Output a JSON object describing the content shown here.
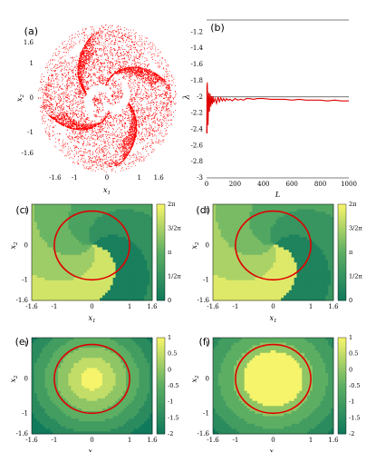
{
  "chart_data": [
    {
      "panel": "(a)",
      "type": "scatter",
      "xlabel": "x1",
      "ylabel": "x2",
      "xticks": [
        "-1.6",
        "-1",
        "0",
        "1",
        "1.6"
      ],
      "yticks": [
        "1.6",
        "1",
        "0",
        "-1",
        "-1.6"
      ],
      "xlim": [
        -2.1,
        2.1
      ],
      "ylim": [
        -2.1,
        2.1
      ],
      "marker_color": "#ff0000",
      "pattern": "spiral attractor cloud, dense square-like region with white spiral arms at center"
    },
    {
      "panel": "(b)",
      "type": "line",
      "xlabel": "L",
      "ylabel": "λ",
      "xticks": [
        "0",
        "200",
        "400",
        "600",
        "800",
        "1000"
      ],
      "yticks": [
        "-1.2",
        "-1.4",
        "-1.6",
        "-1.8",
        "-2",
        "-2.2",
        "-2.4",
        "-2.6",
        "-2.8",
        "-3"
      ],
      "xlim": [
        0,
        1000
      ],
      "ylim": [
        -3.0,
        -1.05
      ],
      "reference_line_y": -2.0,
      "series": [
        {
          "color": "#e00000",
          "x": [
            1,
            5,
            10,
            15,
            20,
            25,
            30,
            35,
            40,
            45,
            50,
            60,
            70,
            80,
            90,
            100,
            110,
            120,
            130,
            140,
            150,
            165,
            180,
            200,
            220,
            240,
            260,
            280,
            300,
            330,
            360,
            400,
            450,
            500,
            550,
            600,
            650,
            700,
            750,
            800,
            850,
            900,
            950,
            1000
          ],
          "y": [
            -2.45,
            -1.82,
            -2.35,
            -1.95,
            -2.18,
            -1.96,
            -2.12,
            -1.99,
            -2.09,
            -1.99,
            -2.07,
            -2.02,
            -2.08,
            -2.0,
            -2.06,
            -2.01,
            -2.05,
            -2.02,
            -2.05,
            -2.02,
            -2.04,
            -2.03,
            -2.05,
            -2.02,
            -2.04,
            -2.03,
            -2.04,
            -2.02,
            -2.02,
            -2.03,
            -2.02,
            -2.02,
            -2.03,
            -2.03,
            -2.03,
            -2.04,
            -2.03,
            -2.04,
            -2.04,
            -2.04,
            -2.05,
            -2.04,
            -2.05,
            -2.05
          ]
        }
      ]
    },
    {
      "panel": "(c)",
      "type": "heatmap",
      "xlabel": "x1",
      "ylabel": "x2",
      "xticks": [
        "-1.6",
        "-1",
        "0",
        "1",
        "1.6"
      ],
      "yticks": [
        "1",
        "0",
        "-1",
        "-1.6"
      ],
      "colorbar_ticks": [
        "2π",
        "3/2π",
        "π",
        "1/2π",
        "0"
      ],
      "circle_color": "#e00000",
      "circle_radius": 1.0,
      "field": "angle",
      "range": [
        0,
        6.283
      ]
    },
    {
      "panel": "(d)",
      "type": "heatmap",
      "xlabel": "x1",
      "ylabel": "x2",
      "xticks": [
        "-1.6",
        "-1",
        "0",
        "1",
        "1.6"
      ],
      "yticks": [
        "1",
        "0",
        "-1",
        "-1.6"
      ],
      "colorbar_ticks": [
        "2π",
        "3/2π",
        "π",
        "1/2π",
        "0"
      ],
      "circle_color": "#e00000",
      "circle_radius": 1.0,
      "field": "angle",
      "range": [
        0,
        6.283
      ]
    },
    {
      "panel": "(e)",
      "type": "heatmap",
      "xlabel": "x1",
      "ylabel": "x2",
      "xticks": [
        "-1.6",
        "-1",
        "0",
        "1",
        "1.6"
      ],
      "yticks": [
        "1",
        "0",
        "-1",
        "-1.6"
      ],
      "colorbar_ticks": [
        "1",
        "0.5",
        "0",
        "-0.5",
        "-1",
        "-1.5",
        "-2"
      ],
      "circle_color": "#e00000",
      "circle_radius": 1.0,
      "field": "radial",
      "range": [
        -2,
        1
      ]
    },
    {
      "panel": "(f)",
      "type": "heatmap",
      "xlabel": "x1",
      "ylabel": "x2",
      "xticks": [
        "-1.6",
        "-1",
        "0",
        "1",
        "1.6"
      ],
      "yticks": [
        "1",
        "0",
        "-1",
        "-1.6"
      ],
      "colorbar_ticks": [
        "1",
        "0.5",
        "0",
        "-0.5",
        "-1",
        "-1.5",
        "-2"
      ],
      "circle_color": "#e00000",
      "circle_radius": 1.0,
      "field": "radial",
      "range": [
        -2,
        1
      ]
    }
  ],
  "colors": {
    "low": "#117a5c",
    "mid": "#5cae63",
    "high": "#f5f46a",
    "red": "#ff0000"
  }
}
